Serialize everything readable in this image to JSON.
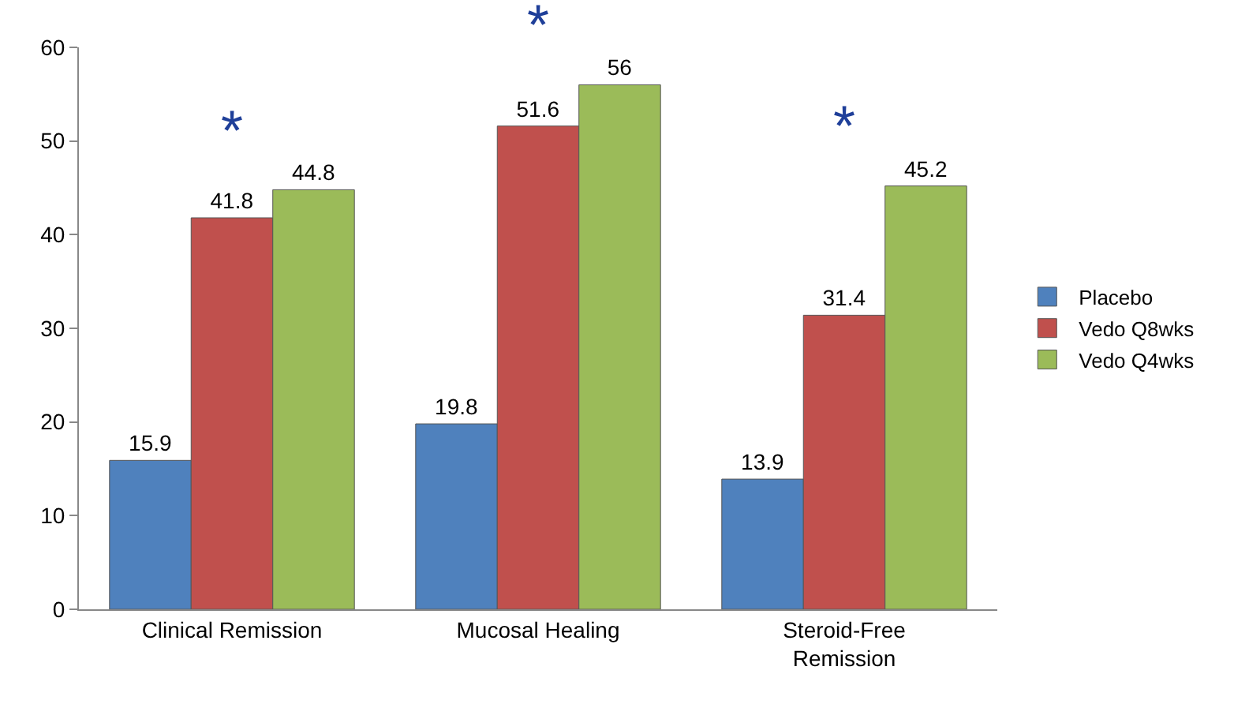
{
  "chart_data": {
    "type": "bar",
    "categories": [
      "Clinical Remission",
      "Mucosal Healing",
      "Steroid-Free\nRemission"
    ],
    "series": [
      {
        "name": "Placebo",
        "color": "#4f81bd",
        "values": [
          15.9,
          19.8,
          13.9
        ]
      },
      {
        "name": "Vedo Q8wks",
        "color": "#c0504d",
        "values": [
          41.8,
          51.6,
          31.4
        ]
      },
      {
        "name": "Vedo Q4wks",
        "color": "#9bbb59",
        "values": [
          44.8,
          56,
          45.2
        ]
      }
    ],
    "ylim": [
      0,
      60
    ],
    "yticks": [
      0,
      10,
      20,
      30,
      40,
      50,
      60
    ],
    "legend": "right",
    "data_labels": true,
    "annotations": [
      "*",
      "*",
      "*"
    ]
  }
}
